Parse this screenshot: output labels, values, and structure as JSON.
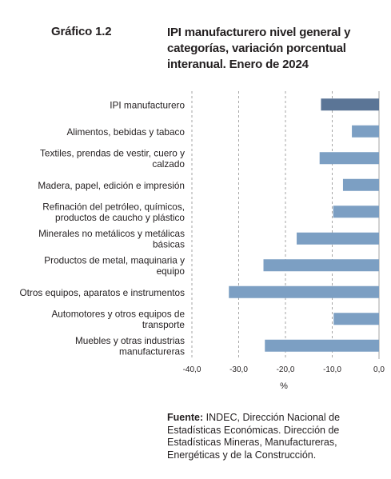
{
  "header": {
    "chart_number": "Gráfico 1.2",
    "title": "IPI manufacturero nivel general y categorías, variación porcentual interanual. Enero de 2024"
  },
  "source": {
    "label": "Fuente:",
    "text": " INDEC, Dirección Nacional de Estadísticas Económicas. Dirección de Estadísticas Mineras, Manufactureras, Energéticas y de la Construcción."
  },
  "colors": {
    "highlight_bar": "#5b7596",
    "bar": "#7c9fc3",
    "gridline": "#a6a6a6",
    "text": "#231f20"
  },
  "chart_data": {
    "type": "bar",
    "orientation": "horizontal",
    "title": "",
    "xlabel": "%",
    "ylabel": "",
    "xlim": [
      -40,
      0
    ],
    "xticks": [
      -40,
      -30,
      -20,
      -10,
      0
    ],
    "xtick_labels": [
      "-40,0",
      "-30,0",
      "-20,0",
      "-10,0",
      "0,0"
    ],
    "grid": "vertical dashed",
    "categories": [
      [
        "IPI manufacturero"
      ],
      [
        "Alimentos, bebidas y tabaco"
      ],
      [
        "Textiles, prendas de vestir, cuero y",
        "calzado"
      ],
      [
        "Madera, papel, edición e impresión"
      ],
      [
        "Refinación del petróleo, químicos,",
        "productos de caucho y plástico"
      ],
      [
        "Minerales no metálicos y metálicas",
        "básicas"
      ],
      [
        "Productos de metal, maquinaria y",
        "equipo"
      ],
      [
        "Otros equipos, aparatos e instrumentos"
      ],
      [
        "Automotores y otros equipos de",
        "transporte"
      ],
      [
        "Muebles y otras industrias",
        "manufactureras"
      ]
    ],
    "values": [
      -12.4,
      -5.8,
      -12.7,
      -7.7,
      -9.8,
      -17.6,
      -24.7,
      -32.1,
      -9.7,
      -24.4
    ],
    "highlight_index": 0
  }
}
